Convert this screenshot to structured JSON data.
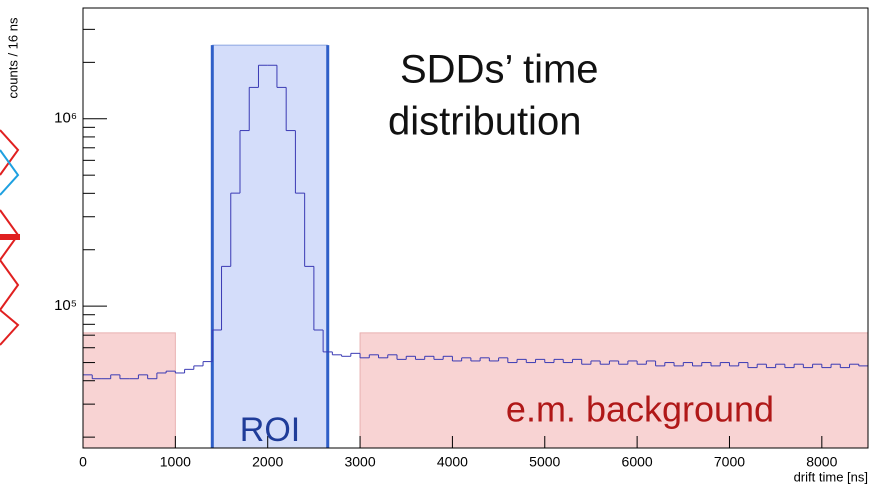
{
  "chart_data": {
    "type": "histogram",
    "title_lines": [
      "SDDs’ time",
      "distribution"
    ],
    "ylabel": "counts / 16 ns",
    "xlabel": "drift time [ns]",
    "roi_label": "ROI",
    "background_label": "e.m. background",
    "log_y": true,
    "xlim": [
      0,
      8500
    ],
    "ylim": [
      17500,
      3900000
    ],
    "xticks": [
      0,
      1000,
      2000,
      3000,
      4000,
      5000,
      6000,
      7000,
      8000
    ],
    "yticks": [
      {
        "value": 100000,
        "label": "10⁵"
      },
      {
        "value": 1000000,
        "label": "10⁶"
      }
    ],
    "yminorticks": [
      20000,
      30000,
      40000,
      50000,
      60000,
      70000,
      80000,
      90000,
      200000,
      300000,
      400000,
      500000,
      600000,
      700000,
      800000,
      900000,
      2000000,
      3000000
    ],
    "color": "#3a3ab4",
    "bins": [
      0,
      100,
      200,
      300,
      400,
      500,
      600,
      700,
      800,
      900,
      1000,
      1100,
      1200,
      1300,
      1400,
      1500,
      1600,
      1700,
      1800,
      1900,
      2000,
      2100,
      2200,
      2300,
      2400,
      2500,
      2600,
      2700,
      2800,
      2900,
      3000,
      3100,
      3200,
      3300,
      3400,
      3500,
      3600,
      3700,
      3800,
      3900,
      4000,
      4100,
      4200,
      4300,
      4400,
      4500,
      4600,
      4700,
      4800,
      4900,
      5000,
      5100,
      5200,
      5300,
      5400,
      5500,
      5600,
      5700,
      5800,
      5900,
      6000,
      6100,
      6200,
      6300,
      6400,
      6500,
      6600,
      6700,
      6800,
      6900,
      7000,
      7100,
      7200,
      7300,
      7400,
      7500,
      7600,
      7700,
      7800,
      7900,
      8000,
      8100,
      8200,
      8300,
      8400,
      8500
    ],
    "values": [
      43000,
      41000,
      41000,
      43000,
      41000,
      41000,
      43000,
      41000,
      44000,
      45000,
      44000,
      46000,
      48000,
      50600,
      74600,
      163000,
      401000,
      865000,
      1470000,
      1930000,
      1930000,
      1470000,
      865000,
      401000,
      163000,
      74600,
      57000,
      55000,
      54000,
      56000,
      53000,
      55000,
      53000,
      55000,
      52000,
      54000,
      52000,
      54000,
      52000,
      54000,
      51000,
      53000,
      51000,
      53000,
      51000,
      53000,
      50000,
      52000,
      50000,
      52000,
      50000,
      52000,
      50000,
      52000,
      49000,
      51000,
      49000,
      51000,
      49000,
      51000,
      49000,
      51000,
      48000,
      50000,
      48000,
      50000,
      48000,
      50000,
      48000,
      50000,
      48000,
      50000,
      47000,
      49000,
      47000,
      49000,
      47000,
      49000,
      47000,
      49000,
      47000,
      49000,
      47000,
      49000,
      48000
    ],
    "regions": [
      {
        "x": [
          0,
          1000
        ],
        "top": 72000,
        "color": "#f4b6b6"
      },
      {
        "x": [
          3000,
          8500
        ],
        "top": 72000,
        "color": "#f4b6b6"
      },
      {
        "x": [
          1400,
          2650
        ],
        "top": 2470000,
        "color": "#b8c6f6",
        "edge": "#2f5fc8"
      }
    ]
  }
}
